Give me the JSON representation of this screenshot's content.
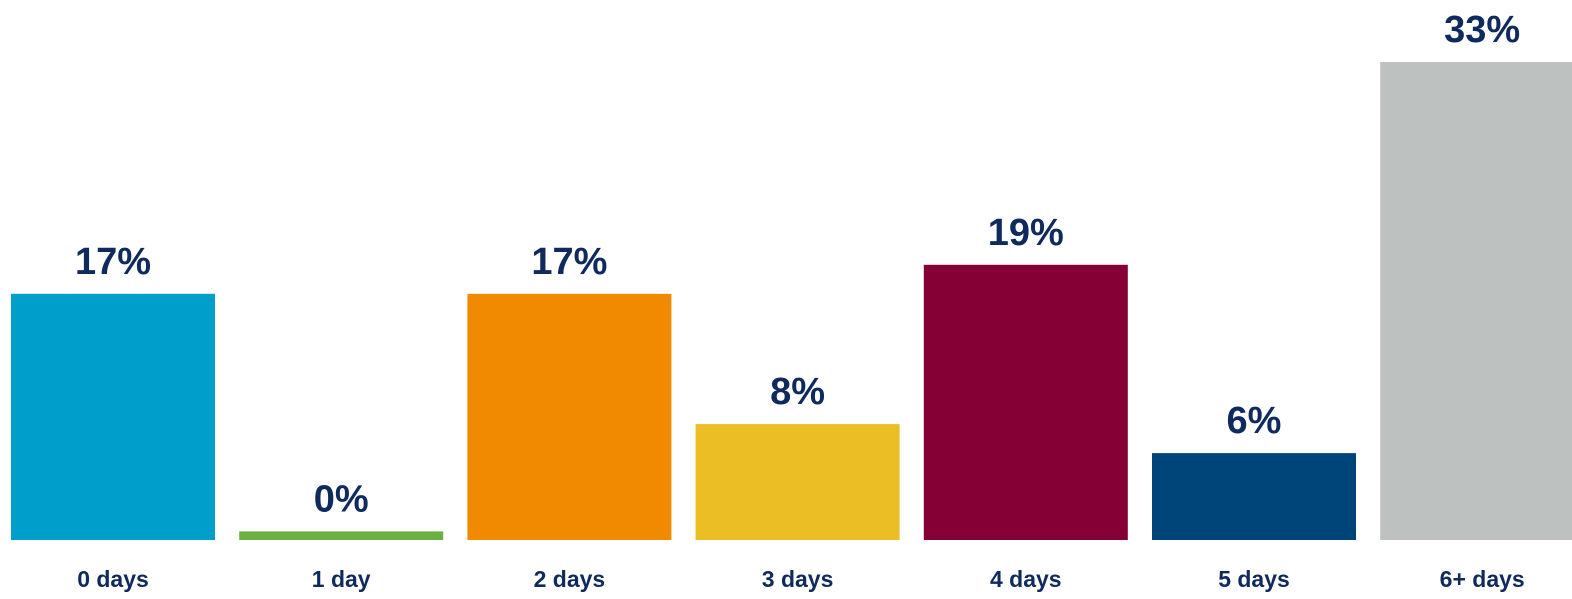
{
  "chart_data": {
    "type": "bar",
    "title": "",
    "xlabel": "",
    "ylabel": "",
    "categories": [
      "0 days",
      "1 day",
      "2 days",
      "3 days",
      "4 days",
      "5 days",
      "6+ days"
    ],
    "values": [
      17,
      0,
      17,
      8,
      19,
      6,
      33
    ],
    "value_labels": [
      "17%",
      "0%",
      "17%",
      "8%",
      "19%",
      "6%",
      "33%"
    ],
    "unit": "%",
    "ylim": [
      0,
      33
    ],
    "grid": false,
    "legend": "none",
    "colors": [
      "#009ECA",
      "#6AB040",
      "#F18A00",
      "#EABE24",
      "#840035",
      "#00457A",
      "#BDC2C1"
    ],
    "label_color": "#0F2A5C",
    "zero_bar_min_fraction": 0.018
  }
}
